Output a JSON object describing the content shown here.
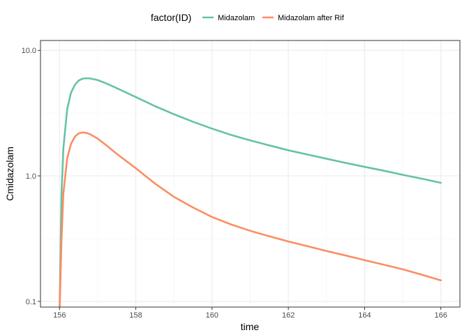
{
  "chart_data": {
    "type": "line",
    "legend": {
      "title": "factor(ID)",
      "position": "top"
    },
    "xlabel": "time",
    "ylabel": "Cmidazolam",
    "xlim": [
      155.5,
      166.5
    ],
    "ylim_log10": [
      0.09,
      12
    ],
    "y_scale": "log10",
    "grid": true,
    "x_ticks": [
      156,
      158,
      160,
      162,
      164,
      166
    ],
    "x_tick_labels": [
      "156",
      "158",
      "160",
      "162",
      "164",
      "166"
    ],
    "y_ticks": [
      0.1,
      1,
      10
    ],
    "y_tick_labels": [
      "0.1",
      "1.0",
      "10.0"
    ],
    "series": [
      {
        "name": "Midazolam",
        "color": "#66c2a5",
        "x": [
          156.0,
          156.05,
          156.1,
          156.2,
          156.3,
          156.4,
          156.5,
          156.6,
          156.7,
          156.8,
          157.0,
          157.2,
          157.5,
          158.0,
          158.5,
          159.0,
          159.5,
          160.0,
          160.5,
          161.0,
          161.5,
          162.0,
          162.5,
          163.0,
          163.5,
          164.0,
          164.5,
          165.0,
          165.5,
          166.0
        ],
        "y": [
          0.08,
          0.7,
          1.65,
          3.4,
          4.6,
          5.3,
          5.75,
          5.95,
          6.0,
          5.98,
          5.8,
          5.5,
          5.0,
          4.25,
          3.6,
          3.1,
          2.7,
          2.38,
          2.12,
          1.92,
          1.75,
          1.6,
          1.48,
          1.37,
          1.27,
          1.18,
          1.1,
          1.02,
          0.95,
          0.88
        ]
      },
      {
        "name": "Midazolam after Rif",
        "color": "#fc8d62",
        "x": [
          156.0,
          156.05,
          156.1,
          156.2,
          156.3,
          156.4,
          156.5,
          156.6,
          156.7,
          156.8,
          157.0,
          157.2,
          157.5,
          158.0,
          158.5,
          159.0,
          159.5,
          160.0,
          160.5,
          161.0,
          161.5,
          162.0,
          162.5,
          163.0,
          163.5,
          164.0,
          164.5,
          165.0,
          165.5,
          166.0
        ],
        "y": [
          0.08,
          0.3,
          0.72,
          1.38,
          1.8,
          2.05,
          2.18,
          2.22,
          2.2,
          2.15,
          1.98,
          1.78,
          1.5,
          1.15,
          0.87,
          0.68,
          0.56,
          0.47,
          0.41,
          0.365,
          0.33,
          0.3,
          0.275,
          0.252,
          0.232,
          0.213,
          0.196,
          0.18,
          0.163,
          0.147
        ]
      }
    ]
  }
}
